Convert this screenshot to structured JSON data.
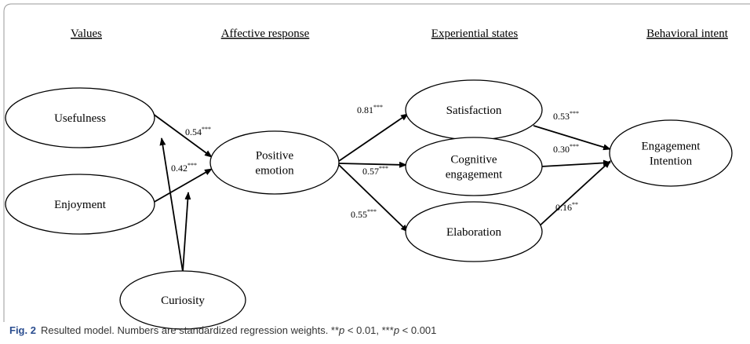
{
  "headers": [
    "Values",
    "Affective response",
    "Experiential states",
    "Behavioral intent"
  ],
  "nodes": [
    {
      "lines": [
        "Usefulness"
      ]
    },
    {
      "lines": [
        "Enjoyment"
      ]
    },
    {
      "lines": [
        "Curiosity"
      ]
    },
    {
      "lines": [
        "Positive",
        "emotion"
      ]
    },
    {
      "lines": [
        "Satisfaction"
      ]
    },
    {
      "lines": [
        "Cognitive",
        "engagement"
      ]
    },
    {
      "lines": [
        "Elaboration"
      ]
    },
    {
      "lines": [
        "Engagement",
        "Intention"
      ]
    }
  ],
  "edges": [
    {
      "coef": "0.54",
      "sig": "***"
    },
    {
      "coef": "0.42",
      "sig": "***"
    },
    {
      "coef": "0.81",
      "sig": "***"
    },
    {
      "coef": "0.57",
      "sig": "***"
    },
    {
      "coef": "0.55",
      "sig": "***"
    },
    {
      "coef": "0.53",
      "sig": "***"
    },
    {
      "coef": "0.30",
      "sig": "***"
    },
    {
      "coef": "0.16",
      "sig": "**"
    }
  ],
  "caption": {
    "label": "Fig. 2",
    "parts": [
      "Resulted model. Numbers are standardized regression weights. **",
      "p",
      " < 0.01, ***",
      "p",
      " < 0.001"
    ]
  }
}
